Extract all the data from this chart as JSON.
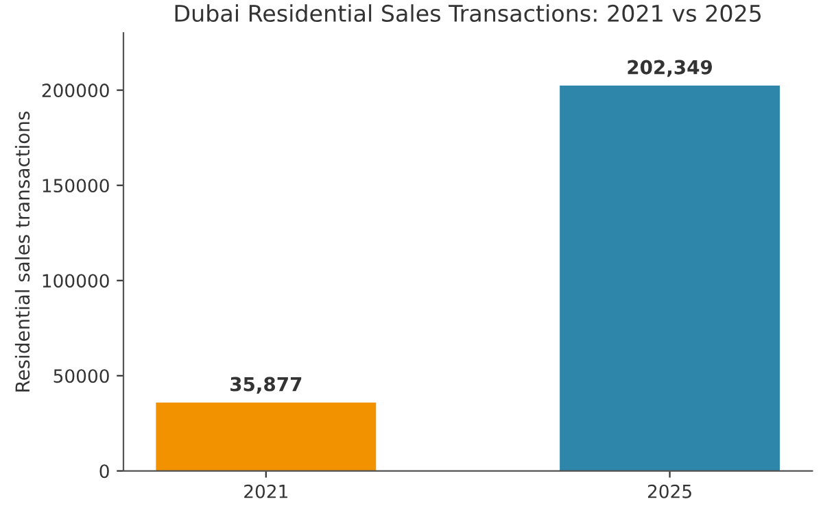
{
  "chart_data": {
    "type": "bar",
    "title": "Dubai Residential Sales Transactions: 2021 vs 2025",
    "ylabel": "Residential sales transactions",
    "categories": [
      "2021",
      "2025"
    ],
    "values": [
      35877,
      202349
    ],
    "colors": [
      "#f39200",
      "#2e86ab"
    ],
    "value_labels": [
      "35,877",
      "202,349"
    ],
    "ylim": [
      0,
      230000
    ],
    "yticks": [
      0,
      50000,
      100000,
      150000,
      200000
    ],
    "grid": false,
    "legend": false
  }
}
